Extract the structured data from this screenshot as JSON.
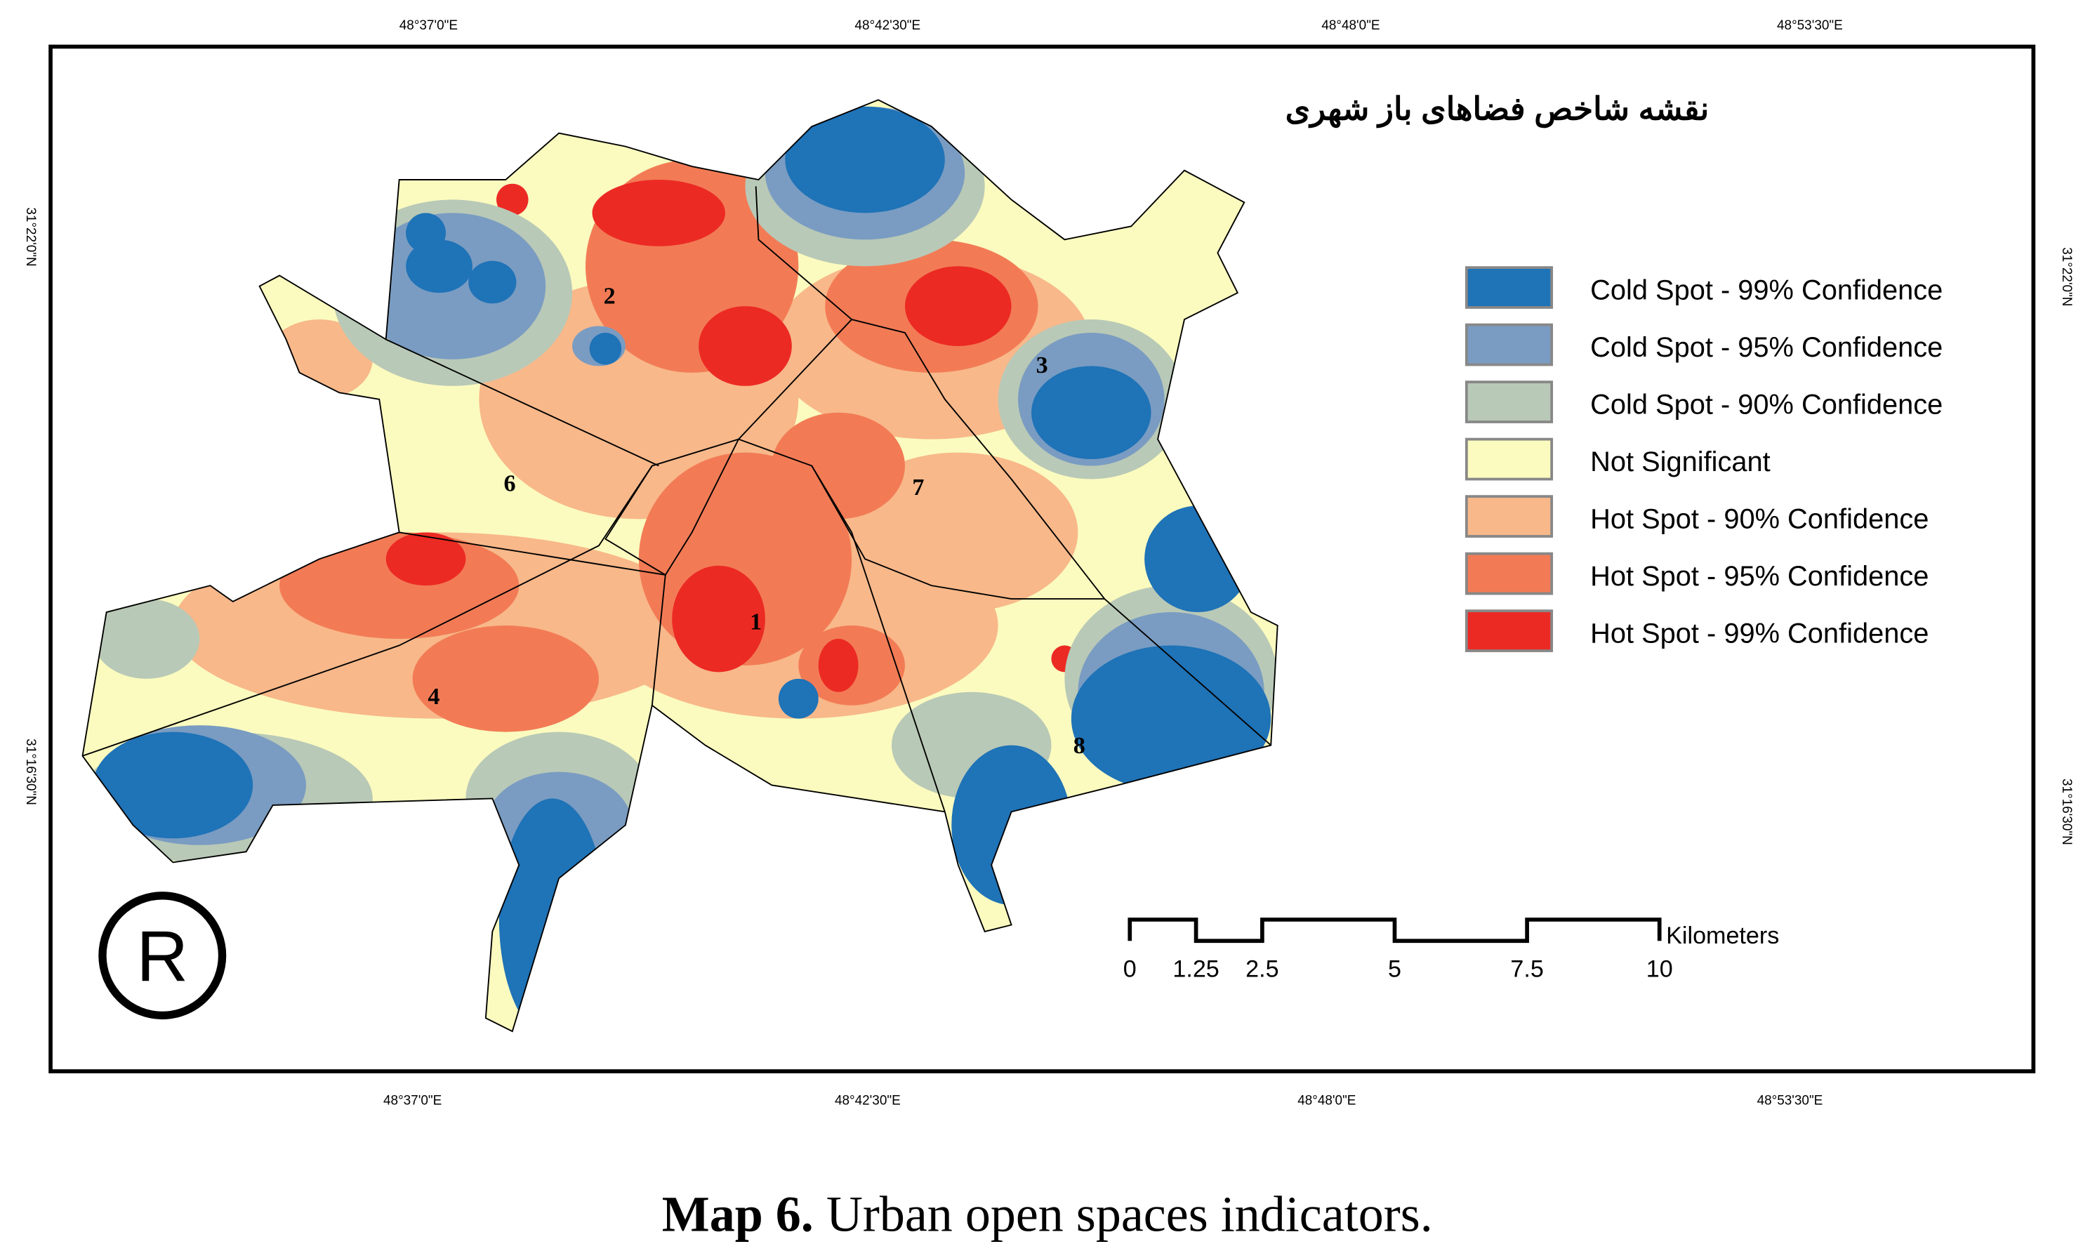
{
  "map": {
    "title": "نقشه شاخص فضاهای باز شهری",
    "legend": [
      {
        "label": "Cold Spot - 99% Confidence",
        "color": "#1f73b7"
      },
      {
        "label": "Cold Spot - 95% Confidence",
        "color": "#7a9cc2"
      },
      {
        "label": "Cold Spot - 90% Confidence",
        "color": "#b9c9b7"
      },
      {
        "label": "Not Significant",
        "color": "#fbfbbf"
      },
      {
        "label": "Hot Spot - 90% Confidence",
        "color": "#f8b88a"
      },
      {
        "label": "Hot Spot - 95% Confidence",
        "color": "#f27b55"
      },
      {
        "label": "Hot Spot - 99% Confidence",
        "color": "#ec2a24"
      }
    ],
    "districts": [
      "1",
      "2",
      "3",
      "4",
      "6",
      "7",
      "8"
    ],
    "top_ticks": [
      "48°37'0\"E",
      "48°42'30\"E",
      "48°48'0\"E",
      "48°53'30\"E"
    ],
    "bottom_ticks": [
      "48°37'0\"E",
      "48°42'30\"E",
      "48°48'0\"E",
      "48°53'30\"E"
    ],
    "left_ticks": [
      "31°22'0\"N",
      "31°16'30\"N"
    ],
    "right_ticks": [
      "31°22'0\"N",
      "31°16'30\"N"
    ],
    "scale_bar": {
      "ticks": [
        0,
        1.25,
        2.5,
        5,
        7.5,
        10
      ],
      "unit": "Kilometers"
    }
  },
  "caption": {
    "label": "Map 6.",
    "text": "Urban open spaces indicators."
  }
}
